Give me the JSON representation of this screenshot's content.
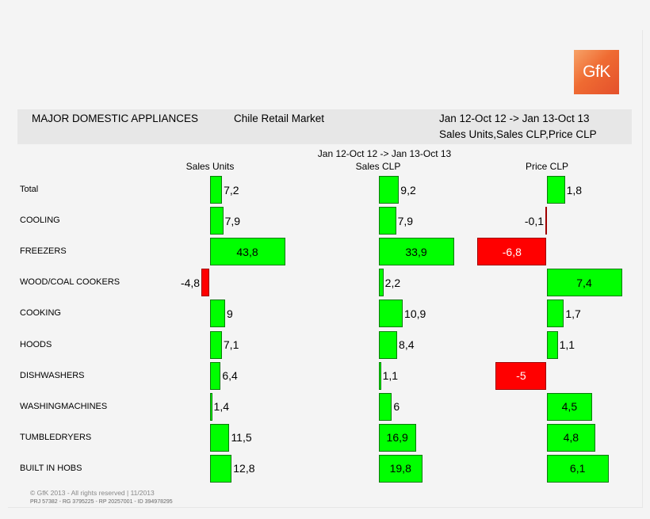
{
  "header": {
    "title": "MAJOR DOMESTIC APPLIANCES",
    "market": "Chile Retail Market",
    "period": "Jan 12-Oct 12 -> Jan 13-Oct 13",
    "measures": "Sales Units,Sales CLP,Price CLP"
  },
  "logo_text": "GfK",
  "column_period": "Jan 12-Oct 12 -> Jan 13-Oct 13",
  "columns": [
    "Sales Units",
    "Sales CLP",
    "Price CLP"
  ],
  "footer": {
    "copyright": "© GfK 2013 - All rights reserved | 11/2013",
    "ids": "PRJ 57382 - RG 3795225 - RP 20257001 - ID 394978295"
  },
  "colors": {
    "positive": "#00ff00",
    "negative": "#ff0000",
    "header_bg": "#e7e7e7"
  },
  "chart_data": {
    "type": "bar",
    "categories": [
      "Total",
      "COOLING",
      "FREEZERS",
      "WOOD/COAL COOKERS",
      "COOKING",
      "HOODS",
      "DISHWASHERS",
      "WASHINGMACHINES",
      "TUMBLEDRYERS",
      "BUILT IN HOBS"
    ],
    "series": [
      {
        "name": "Sales Units",
        "values": [
          7.2,
          7.9,
          43.8,
          -4.8,
          9,
          7.1,
          6.4,
          1.4,
          11.5,
          12.8
        ],
        "labels": [
          "7,2",
          "7,9",
          "43,8",
          "-4,8",
          "9",
          "7,1",
          "6,4",
          "1,4",
          "11,5",
          "12,8"
        ]
      },
      {
        "name": "Sales CLP",
        "values": [
          9.2,
          7.9,
          33.9,
          2.2,
          10.9,
          8.4,
          1.1,
          6,
          16.9,
          19.8
        ],
        "labels": [
          "9,2",
          "7,9",
          "33,9",
          "2,2",
          "10,9",
          "8,4",
          "1,1",
          "6",
          "16,9",
          "19,8"
        ]
      },
      {
        "name": "Price CLP",
        "values": [
          1.8,
          -0.1,
          -6.8,
          7.4,
          1.7,
          1.1,
          -5,
          4.5,
          4.8,
          6.1
        ],
        "labels": [
          "1,8",
          "-0,1",
          "-6,8",
          "7,4",
          "1,7",
          "1,1",
          "-5",
          "4,5",
          "4,8",
          "6,1"
        ]
      }
    ]
  }
}
